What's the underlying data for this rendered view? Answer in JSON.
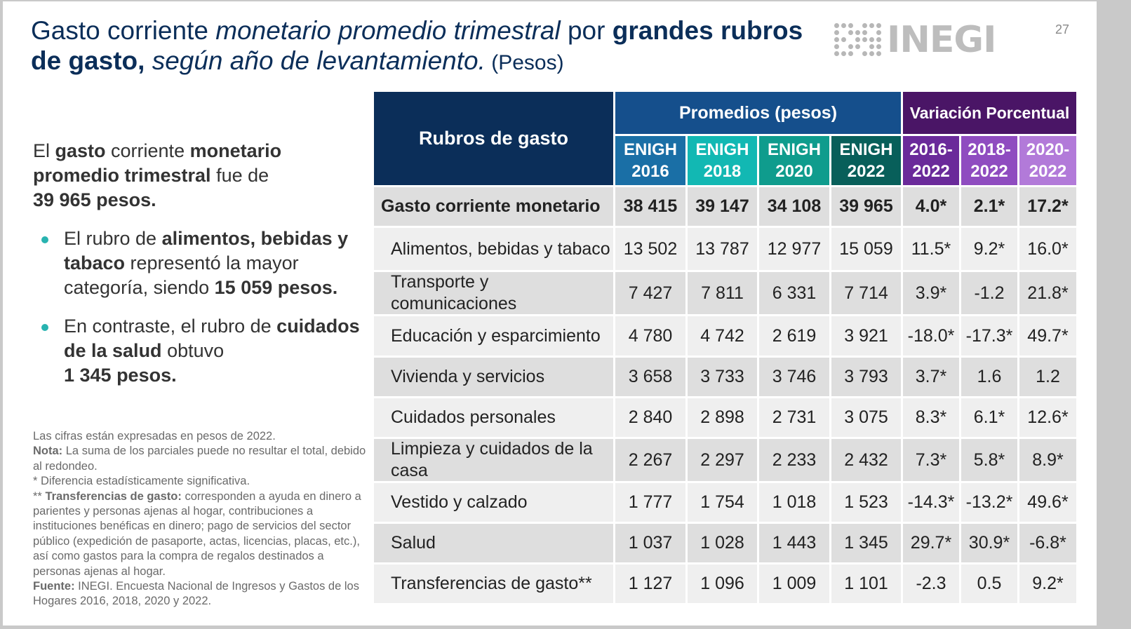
{
  "page_number": "27",
  "title": {
    "part1": "Gasto corriente ",
    "part2": "monetario promedio trimestral",
    "part3": " por ",
    "part4": "grandes rubros de gasto,",
    "part5": " según año de levantamiento.",
    "part6": " (Pesos)"
  },
  "logo": {
    "text": "INEGI"
  },
  "summary": {
    "s1": "El ",
    "s2": "gasto",
    "s3": " corriente ",
    "s4": "monetario promedio trimestral",
    "s5": " fue de ",
    "s6": "39 965 pesos."
  },
  "bullets": [
    {
      "p1": "El rubro de ",
      "p2": "alimentos, bebidas y tabaco",
      "p3": " representó la mayor categoría, siendo ",
      "p4": "15 059 pesos."
    },
    {
      "p1": "En contraste, el rubro de ",
      "p2": "cuidados de la salud",
      "p3": " obtuvo ",
      "p4": "1 345 pesos."
    }
  ],
  "notes": {
    "line1": "Las cifras están expresadas en pesos de 2022.",
    "nota_label": "Nota:",
    "nota_text": " La suma de los parciales puede no resultar el total, debido al redondeo.",
    "asterisk": "* Diferencia estadísticamente significativa.",
    "transf_prefix": "** ",
    "transf_label": "Transferencias de gasto:",
    "transf_text": " corresponden a ayuda en dinero a parientes y personas ajenas al hogar, contribuciones a instituciones benéficas en dinero; pago de servicios del sector público (expedición de pasaporte, actas, licencias, placas, etc.), así como gastos para la compra de regalos destinados a personas ajenas al hogar.",
    "fuente_label": "Fuente:",
    "fuente_text": " INEGI. Encuesta Nacional de Ingresos y Gastos de los Hogares 2016, 2018, 2020 y 2022."
  },
  "table": {
    "header_rubros": "Rubros de gasto",
    "header_promedios": "Promedios (pesos)",
    "header_variacion": "Variación Porcentual",
    "sub_headers": [
      {
        "l1": "ENIGH",
        "l2": "2016",
        "color": "#1a6fa6"
      },
      {
        "l1": "ENIGH",
        "l2": "2018",
        "color": "#12b8b3"
      },
      {
        "l1": "ENIGH",
        "l2": "2020",
        "color": "#0f9c8d"
      },
      {
        "l1": "ENIGH",
        "l2": "2022",
        "color": "#085f5a"
      },
      {
        "l1": "2016-",
        "l2": "2022",
        "color": "#6a2a9a"
      },
      {
        "l1": "2018-",
        "l2": "2022",
        "color": "#8f4cc0"
      },
      {
        "l1": "2020-",
        "l2": "2022",
        "color": "#b27ad9"
      }
    ],
    "rows": [
      {
        "label": "Gasto corriente monetario",
        "values": [
          "38 415",
          "39 147",
          "34 108",
          "39 965",
          "4.0*",
          "2.1*",
          "17.2*"
        ],
        "total": true
      },
      {
        "label": "Alimentos, bebidas y tabaco",
        "values": [
          "13 502",
          "13 787",
          "12 977",
          "15 059",
          "11.5*",
          "9.2*",
          "16.0*"
        ]
      },
      {
        "label": "Transporte y comunicaciones",
        "values": [
          "7 427",
          "7 811",
          "6 331",
          "7 714",
          "3.9*",
          "-1.2",
          "21.8*"
        ]
      },
      {
        "label": "Educación y esparcimiento",
        "values": [
          "4 780",
          "4 742",
          "2 619",
          "3 921",
          "-18.0*",
          "-17.3*",
          "49.7*"
        ]
      },
      {
        "label": "Vivienda y servicios",
        "values": [
          "3 658",
          "3 733",
          "3 746",
          "3 793",
          "3.7*",
          "1.6",
          "1.2"
        ]
      },
      {
        "label": "Cuidados personales",
        "values": [
          "2 840",
          "2 898",
          "2 731",
          "3 075",
          "8.3*",
          "6.1*",
          "12.6*"
        ]
      },
      {
        "label": "Limpieza y cuidados de la casa",
        "values": [
          "2 267",
          "2 297",
          "2 233",
          "2 432",
          "7.3*",
          "5.8*",
          "8.9*"
        ]
      },
      {
        "label": "Vestido y calzado",
        "values": [
          "1 777",
          "1 754",
          "1 018",
          "1 523",
          "-14.3*",
          "-13.2*",
          "49.6*"
        ]
      },
      {
        "label": "Salud",
        "values": [
          "1 037",
          "1 028",
          "1 443",
          "1 345",
          "29.7*",
          "30.9*",
          "-6.8*"
        ]
      },
      {
        "label": "Transferencias de gasto**",
        "values": [
          "1 127",
          "1 096",
          "1 009",
          "1 101",
          "-2.3",
          "0.5",
          "9.2*"
        ]
      }
    ]
  },
  "colors": {
    "title": "#0b2e59",
    "header_rubros": "#0b2e59",
    "header_promedios": "#154f8c",
    "header_variacion": "#4a1566",
    "bullet": "#28b3b0",
    "row_dark": "#dedede",
    "row_light": "#efefef"
  }
}
